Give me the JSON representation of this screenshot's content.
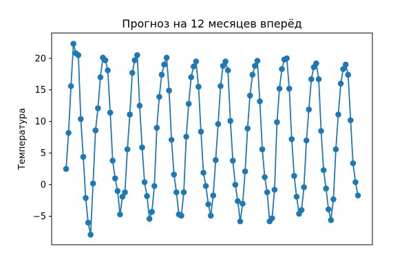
{
  "chart_data": {
    "type": "line",
    "title": "Прогноз на 12 месяцев вперёд",
    "xlabel": "",
    "ylabel": "Температура",
    "xticks_visible": false,
    "ylim": [
      -9.5,
      24.0
    ],
    "yticks": [
      -5,
      0,
      5,
      10,
      15,
      20
    ],
    "grid": false,
    "line_color": "#1f77b4",
    "marker": "circle",
    "series": [
      {
        "values": [
          2.5,
          8.2,
          15.6,
          22.3,
          20.8,
          20.5,
          10.4,
          4.4,
          -2.1,
          -6.0,
          -7.9,
          0.2,
          8.6,
          12.1,
          17.0,
          20.1,
          19.7,
          18.1,
          11.4,
          3.8,
          1.0,
          -1.0,
          -4.7,
          -1.9,
          -1.2,
          5.6,
          11.1,
          17.7,
          19.7,
          20.5,
          12.5,
          5.9,
          0.4,
          -1.8,
          -5.4,
          -4.3,
          -0.2,
          9.0,
          13.9,
          17.4,
          19.0,
          20.1,
          14.9,
          7.1,
          1.6,
          -1.2,
          -4.7,
          -4.9,
          -1.2,
          7.6,
          12.8,
          17.0,
          18.7,
          19.5,
          15.5,
          8.4,
          1.9,
          -0.2,
          -3.1,
          -4.9,
          -1.7,
          3.9,
          9.6,
          15.6,
          18.8,
          19.5,
          18.1,
          10.1,
          3.8,
          0.0,
          -2.6,
          -5.8,
          -3.0,
          2.1,
          8.9,
          14.1,
          17.4,
          18.8,
          19.6,
          13.2,
          5.6,
          1.2,
          -1.2,
          -5.8,
          -5.3,
          -0.8,
          9.9,
          15.2,
          18.3,
          19.8,
          20.0,
          15.2,
          7.2,
          1.4,
          -1.9,
          -4.6,
          -4.0,
          -0.4,
          7.0,
          11.9,
          16.7,
          18.6,
          19.2,
          16.7,
          8.5,
          2.3,
          -0.6,
          -3.9,
          -5.6,
          -2.3,
          5.6,
          11.1,
          16.0,
          18.3,
          19.0,
          17.4,
          10.2,
          3.4,
          0.4,
          -1.7
        ]
      }
    ]
  }
}
